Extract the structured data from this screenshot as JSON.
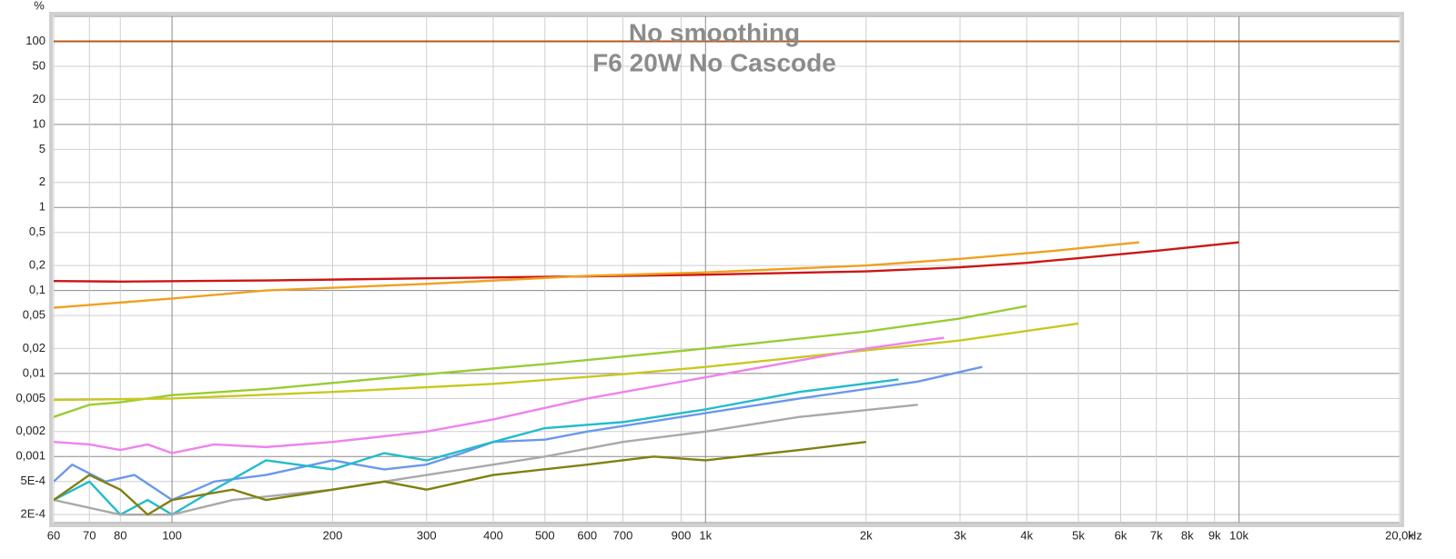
{
  "chart_data": {
    "type": "line",
    "title": "No smoothing",
    "subtitle": "F6 20W No Cascode",
    "x_label": "Hz",
    "y_label": "%",
    "xscale": "log",
    "yscale": "log",
    "grid": true,
    "xlim": [
      60,
      20000
    ],
    "ylim": [
      0.00016,
      200
    ],
    "xticks": [
      60,
      70,
      80,
      100,
      200,
      300,
      400,
      500,
      600,
      700,
      900,
      {
        "value": 1000,
        "label": "1k"
      },
      {
        "value": 2000,
        "label": "2k"
      },
      {
        "value": 3000,
        "label": "3k"
      },
      {
        "value": 4000,
        "label": "4k"
      },
      {
        "value": 5000,
        "label": "5k"
      },
      {
        "value": 6000,
        "label": "6k"
      },
      {
        "value": 7000,
        "label": "7k"
      },
      {
        "value": 8000,
        "label": "8k"
      },
      {
        "value": 9000,
        "label": "9k"
      },
      {
        "value": 10000,
        "label": "10k"
      },
      {
        "value": 20000,
        "label": "20,0k"
      }
    ],
    "yticks": [
      100,
      50,
      20,
      10,
      5,
      2,
      1,
      {
        "value": 0.5,
        "label": "0,5"
      },
      {
        "value": 0.2,
        "label": "0,2"
      },
      {
        "value": 0.1,
        "label": "0,1"
      },
      {
        "value": 0.05,
        "label": "0,05"
      },
      {
        "value": 0.02,
        "label": "0,02"
      },
      {
        "value": 0.01,
        "label": "0,01"
      },
      {
        "value": 0.005,
        "label": "0,005"
      },
      {
        "value": 0.002,
        "label": "0,002"
      },
      {
        "value": 0.001,
        "label": "0,001"
      },
      {
        "value": 0.0005,
        "label": "5E-4"
      },
      {
        "value": 0.0002,
        "label": "2E-4"
      }
    ],
    "series": [
      {
        "color": "#b4581e",
        "x": [
          60,
          20000
        ],
        "values": [
          100,
          100
        ]
      },
      {
        "color": "#cc1616",
        "x": [
          60,
          80,
          150,
          300,
          600,
          1000,
          2000,
          3000,
          4000,
          5000,
          7000,
          10000
        ],
        "values": [
          0.13,
          0.128,
          0.132,
          0.14,
          0.148,
          0.155,
          0.17,
          0.19,
          0.215,
          0.245,
          0.3,
          0.38
        ]
      },
      {
        "color": "#f0a020",
        "x": [
          60,
          100,
          150,
          300,
          600,
          1000,
          2000,
          3000,
          4500,
          6500
        ],
        "values": [
          0.062,
          0.08,
          0.1,
          0.12,
          0.15,
          0.165,
          0.2,
          0.24,
          0.3,
          0.38
        ]
      },
      {
        "color": "#99cc33",
        "x": [
          60,
          70,
          80,
          100,
          150,
          200,
          300,
          500,
          700,
          1000,
          2000,
          3000,
          4000
        ],
        "values": [
          0.003,
          0.0042,
          0.0045,
          0.0055,
          0.0065,
          0.0077,
          0.0098,
          0.013,
          0.016,
          0.02,
          0.032,
          0.046,
          0.065
        ]
      },
      {
        "color": "#c8c820",
        "x": [
          60,
          100,
          200,
          400,
          700,
          1000,
          2000,
          3000,
          5000
        ],
        "values": [
          0.0048,
          0.005,
          0.006,
          0.0075,
          0.0098,
          0.012,
          0.019,
          0.025,
          0.04
        ]
      },
      {
        "color": "#ee82ee",
        "x": [
          60,
          70,
          80,
          90,
          100,
          120,
          150,
          200,
          300,
          400,
          600,
          1000,
          2000,
          2800
        ],
        "values": [
          0.0015,
          0.0014,
          0.0012,
          0.0014,
          0.0011,
          0.0014,
          0.0013,
          0.0015,
          0.002,
          0.0028,
          0.005,
          0.009,
          0.02,
          0.027
        ]
      },
      {
        "color": "#6a98ea",
        "x": [
          60,
          65,
          75,
          85,
          100,
          120,
          150,
          200,
          250,
          300,
          350,
          400,
          500,
          600,
          900,
          1500,
          2500,
          3300
        ],
        "values": [
          0.0005,
          0.0008,
          0.0005,
          0.0006,
          0.0003,
          0.0005,
          0.0006,
          0.0009,
          0.0007,
          0.0008,
          0.0011,
          0.0015,
          0.0016,
          0.002,
          0.003,
          0.005,
          0.008,
          0.012
        ]
      },
      {
        "color": "#22bbcc",
        "x": [
          60,
          70,
          80,
          90,
          100,
          120,
          150,
          200,
          250,
          300,
          400,
          500,
          700,
          1000,
          1500,
          2300
        ],
        "values": [
          0.0003,
          0.0005,
          0.0002,
          0.0003,
          0.0002,
          0.0004,
          0.0009,
          0.0007,
          0.0011,
          0.0009,
          0.0015,
          0.0022,
          0.0026,
          0.0037,
          0.006,
          0.0085
        ]
      },
      {
        "color": "#a9a9a9",
        "x": [
          60,
          80,
          100,
          130,
          200,
          300,
          400,
          500,
          700,
          1000,
          1500,
          2500
        ],
        "values": [
          0.0003,
          0.0002,
          0.0002,
          0.0003,
          0.0004,
          0.0006,
          0.0008,
          0.001,
          0.0015,
          0.002,
          0.003,
          0.0042
        ]
      },
      {
        "color": "#808010",
        "x": [
          60,
          70,
          80,
          90,
          100,
          130,
          150,
          200,
          250,
          300,
          400,
          600,
          800,
          1000,
          1500,
          2000
        ],
        "values": [
          0.0003,
          0.0006,
          0.0004,
          0.0002,
          0.0003,
          0.0004,
          0.0003,
          0.0004,
          0.0005,
          0.0004,
          0.0006,
          0.0008,
          0.001,
          0.0009,
          0.0012,
          0.0015
        ]
      }
    ]
  }
}
